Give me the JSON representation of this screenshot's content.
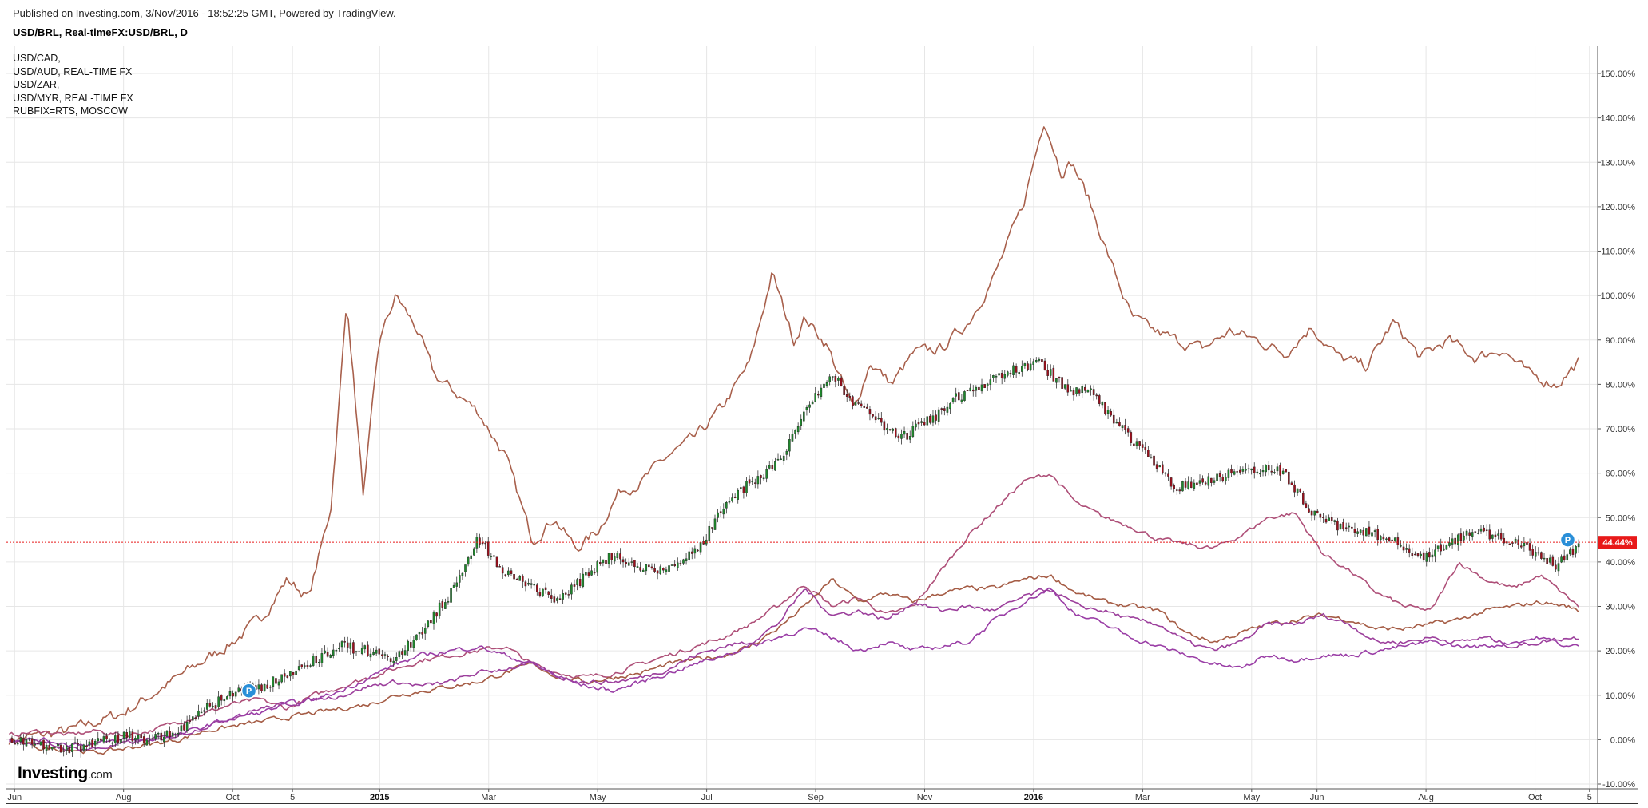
{
  "header": {
    "published": "Published on Investing.com, 3/Nov/2016 - 18:52:25 GMT, Powered by TradingView.",
    "symbol": "USD/BRL, Real-timeFX:USD/BRL, D"
  },
  "legend": [
    "USD/CAD,",
    "USD/AUD, REAL-TIME FX",
    "USD/ZAR,",
    "USD/MYR, REAL-TIME FX",
    "RUBFIX=RTS, MOSCOW"
  ],
  "logo": {
    "main": "Investing",
    "suffix": ".com"
  },
  "last_value_label": "44.44%",
  "markers": {
    "label": "P"
  },
  "colors": {
    "rub": "#a8604c",
    "zar": "#ae4f78",
    "cad": "#a55c45",
    "aud": "#9c3f9c",
    "myr": "#9a3ea6",
    "candle_up": "#1e8a2c",
    "candle_down": "#9e0f1c",
    "last_price": "#e81919",
    "marker": "#2a8fd8"
  },
  "chart_data": {
    "type": "line",
    "percent_scale": true,
    "grid": true,
    "y_ticks": [
      -10,
      0,
      10,
      20,
      30,
      40,
      50,
      60,
      70,
      80,
      90,
      100,
      110,
      120,
      130,
      140,
      150
    ],
    "y_tick_labels": [
      "-10.00%",
      "0.00%",
      "10.00%",
      "20.00%",
      "30.00%",
      "40.00%",
      "50.00%",
      "60.00%",
      "70.00%",
      "80.00%",
      "90.00%",
      "100.00%",
      "110.00%",
      "120.00%",
      "130.00%",
      "140.00%",
      "150.00%"
    ],
    "ylim": [
      -10,
      150
    ],
    "x_ticks": [
      {
        "label": "Jun",
        "t": 0.5,
        "bold": false
      },
      {
        "label": "Aug",
        "t": 2.5,
        "bold": false
      },
      {
        "label": "Oct",
        "t": 4.5,
        "bold": false
      },
      {
        "label": "5",
        "t": 5.6,
        "bold": false
      },
      {
        "label": "2015",
        "t": 7.2,
        "bold": true
      },
      {
        "label": "Mar",
        "t": 9.2,
        "bold": false
      },
      {
        "label": "May",
        "t": 11.2,
        "bold": false
      },
      {
        "label": "Jul",
        "t": 13.2,
        "bold": false
      },
      {
        "label": "Sep",
        "t": 15.2,
        "bold": false
      },
      {
        "label": "Nov",
        "t": 17.2,
        "bold": false
      },
      {
        "label": "2016",
        "t": 19.2,
        "bold": true
      },
      {
        "label": "Mar",
        "t": 21.2,
        "bold": false
      },
      {
        "label": "May",
        "t": 23.2,
        "bold": false
      },
      {
        "label": "Jun",
        "t": 24.4,
        "bold": false
      },
      {
        "label": "Aug",
        "t": 26.4,
        "bold": false
      },
      {
        "label": "Oct",
        "t": 28.4,
        "bold": false
      },
      {
        "label": "5",
        "t": 29.4,
        "bold": false
      }
    ],
    "xlim": [
      0.35,
      29.55
    ],
    "last_value": 44.44,
    "marker_points": [
      {
        "t": 4.8,
        "y": 11
      },
      {
        "t": 29.0,
        "y": 45
      }
    ],
    "main_series": {
      "name": "USD/BRL",
      "style": "candlestick",
      "t": [
        0.4,
        1,
        1.5,
        2,
        2.5,
        3,
        3.5,
        4,
        4.5,
        5,
        5.5,
        6,
        6.5,
        7,
        7.5,
        8,
        8.5,
        9,
        9.5,
        10,
        10.5,
        11,
        11.5,
        12,
        12.5,
        13,
        13.5,
        14,
        14.5,
        15,
        15.5,
        15.9,
        16.3,
        16.8,
        17.3,
        17.8,
        18.3,
        18.8,
        19.3,
        19.8,
        20.3,
        20.8,
        21.3,
        21.8,
        22.3,
        22.8,
        23.3,
        23.8,
        24.3,
        24.8,
        25.3,
        25.8,
        26.3,
        26.8,
        27.3,
        27.8,
        28.3,
        28.8,
        29.2
      ],
      "values": [
        0,
        -1,
        -2,
        -1,
        1,
        0,
        2,
        7,
        10,
        12,
        14,
        18,
        21,
        20,
        18,
        25,
        33,
        45,
        38,
        34,
        31,
        37,
        42,
        38,
        39,
        42,
        52,
        58,
        62,
        74,
        82,
        76,
        72,
        68,
        72,
        77,
        80,
        83,
        85,
        79,
        78,
        70,
        64,
        57,
        58,
        60,
        61,
        60,
        51,
        48,
        47,
        45,
        41,
        44,
        47,
        45,
        43,
        39,
        44
      ]
    },
    "series": [
      {
        "name": "RUBFIX=RTS, MOSCOW",
        "color_key": "rub",
        "t": [
          0.4,
          1,
          1.5,
          2,
          2.5,
          3,
          3.5,
          4,
          4.5,
          5,
          5.5,
          5.9,
          6.3,
          6.6,
          6.9,
          7.2,
          7.5,
          7.9,
          8.2,
          8.6,
          9,
          9.5,
          10,
          10.4,
          10.8,
          11.2,
          11.6,
          12,
          12.5,
          13,
          13.5,
          14,
          14.4,
          14.8,
          15.0,
          15.4,
          15.9,
          16.2,
          16.6,
          17.0,
          17.5,
          18,
          18.5,
          19,
          19.4,
          19.7,
          19.9,
          20.2,
          20.6,
          21.0,
          21.4,
          21.8,
          22.3,
          22.8,
          23.3,
          23.8,
          24.3,
          24.8,
          25.3,
          25.8,
          26.3,
          26.8,
          27.3,
          27.8,
          28.3,
          28.8,
          29.2
        ],
        "values": [
          0,
          1,
          2,
          4,
          6,
          10,
          14,
          18,
          22,
          27,
          36,
          32,
          52,
          99,
          55,
          90,
          100,
          92,
          82,
          78,
          74,
          64,
          45,
          50,
          43,
          47,
          56,
          58,
          64,
          68,
          75,
          85,
          105,
          90,
          95,
          89,
          74,
          85,
          80,
          87,
          88,
          94,
          105,
          120,
          140,
          128,
          130,
          122,
          108,
          95,
          92,
          90,
          88,
          92,
          90,
          87,
          93,
          86,
          84,
          94,
          86,
          90,
          86,
          88,
          82,
          80,
          85
        ]
      },
      {
        "name": "USD/ZAR",
        "color_key": "zar",
        "t": [
          0.4,
          1,
          1.5,
          2,
          2.5,
          3,
          3.5,
          4,
          4.5,
          5,
          5.5,
          6,
          6.5,
          7,
          7.5,
          8,
          8.5,
          9,
          9.5,
          10,
          10.5,
          11,
          11.5,
          12,
          12.5,
          13,
          13.5,
          14,
          14.5,
          15,
          15.5,
          16,
          16.5,
          17,
          17.5,
          18,
          18.5,
          19,
          19.5,
          20,
          20.5,
          21,
          21.5,
          22,
          22.5,
          23,
          23.5,
          24,
          24.5,
          25,
          25.5,
          26,
          26.5,
          27,
          27.5,
          28,
          28.5,
          29,
          29.2
        ],
        "values": [
          1,
          2,
          1,
          2,
          1,
          2,
          4,
          6,
          8,
          9,
          7,
          10,
          12,
          14,
          16,
          18,
          19,
          20,
          21,
          17,
          15,
          14,
          15,
          17,
          19,
          21,
          23,
          26,
          30,
          35,
          30,
          32,
          28,
          30,
          38,
          46,
          52,
          58,
          60,
          53,
          50,
          48,
          45,
          44,
          43,
          46,
          50,
          51,
          42,
          38,
          33,
          30,
          29,
          40,
          36,
          34,
          37,
          32,
          30
        ]
      },
      {
        "name": "USD/CAD",
        "color_key": "cad",
        "t": [
          0.4,
          1,
          1.5,
          2,
          2.5,
          3,
          3.5,
          4,
          4.5,
          5,
          5.5,
          6,
          6.5,
          7,
          7.5,
          8,
          8.5,
          9,
          9.5,
          10,
          10.5,
          11,
          11.5,
          12,
          12.5,
          13,
          13.5,
          14,
          14.5,
          15,
          15.5,
          16,
          16.5,
          17,
          17.5,
          18,
          18.5,
          19,
          19.5,
          20,
          20.5,
          21,
          21.5,
          22,
          22.5,
          23,
          23.5,
          24,
          24.5,
          25,
          25.5,
          26,
          26.5,
          27,
          27.5,
          28,
          28.5,
          29,
          29.2
        ],
        "values": [
          0,
          -2,
          -2,
          -3,
          -2,
          -1,
          0,
          2,
          3,
          4,
          5,
          6,
          7,
          8,
          10,
          11,
          12,
          13,
          15,
          17,
          14,
          13,
          14,
          15,
          17,
          18,
          19,
          21,
          25,
          30,
          36,
          31,
          33,
          31,
          33,
          34,
          34,
          36,
          37,
          33,
          31,
          30,
          29,
          24,
          22,
          24,
          26,
          27,
          28,
          27,
          25,
          25,
          26,
          27,
          29,
          30,
          31,
          30,
          29
        ]
      },
      {
        "name": "USD/AUD, REAL-TIME FX",
        "color_key": "aud",
        "t": [
          0.4,
          1,
          1.5,
          2,
          2.5,
          3,
          3.5,
          4,
          4.5,
          5,
          5.5,
          6,
          6.5,
          7,
          7.5,
          8,
          8.5,
          9,
          9.5,
          10,
          10.5,
          11,
          11.5,
          12,
          12.5,
          13,
          13.5,
          14,
          14.5,
          15,
          15.5,
          16,
          16.5,
          17,
          17.5,
          18,
          18.5,
          19,
          19.5,
          20,
          20.5,
          21,
          21.5,
          22,
          22.5,
          23,
          23.5,
          24,
          24.5,
          25,
          25.5,
          26,
          26.5,
          27,
          27.5,
          28,
          28.5,
          29,
          29.2
        ],
        "values": [
          0,
          -1,
          -2,
          -2,
          -1,
          0,
          1,
          3,
          5,
          7,
          8,
          9,
          10,
          12,
          13,
          12,
          13,
          15,
          16,
          17,
          14,
          13,
          13,
          14,
          16,
          19,
          21,
          22,
          26,
          34,
          28,
          29,
          27,
          31,
          29,
          30,
          29,
          32,
          34,
          30,
          29,
          27,
          26,
          22,
          20,
          22,
          26,
          26,
          28,
          26,
          22,
          22,
          23,
          22,
          23,
          21,
          22,
          23,
          23
        ]
      },
      {
        "name": "USD/MYR, REAL-TIME FX",
        "color_key": "myr",
        "t": [
          0.4,
          1,
          1.5,
          2,
          2.5,
          3,
          3.5,
          4,
          4.5,
          5,
          5.5,
          6,
          6.5,
          7,
          7.5,
          8,
          8.5,
          9,
          9.5,
          10,
          10.5,
          11,
          11.5,
          12,
          12.5,
          13,
          13.5,
          14,
          14.5,
          15,
          15.5,
          16,
          16.5,
          17,
          17.5,
          18,
          18.5,
          19,
          19.5,
          20,
          20.5,
          21,
          21.5,
          22,
          22.5,
          23,
          23.5,
          24,
          24.5,
          25,
          25.5,
          26,
          26.5,
          27,
          27.5,
          28,
          28.5,
          29,
          29.2
        ],
        "values": [
          0,
          0,
          -1,
          -1,
          0,
          0,
          1,
          3,
          5,
          6,
          8,
          9,
          11,
          14,
          17,
          19,
          20,
          21,
          19,
          17,
          14,
          12,
          11,
          13,
          15,
          17,
          19,
          21,
          23,
          25,
          23,
          20,
          22,
          20,
          21,
          22,
          27,
          31,
          34,
          28,
          26,
          23,
          21,
          19,
          17,
          16,
          19,
          18,
          19,
          19,
          20,
          21,
          22,
          21,
          21,
          22,
          23,
          21,
          21
        ]
      }
    ]
  }
}
